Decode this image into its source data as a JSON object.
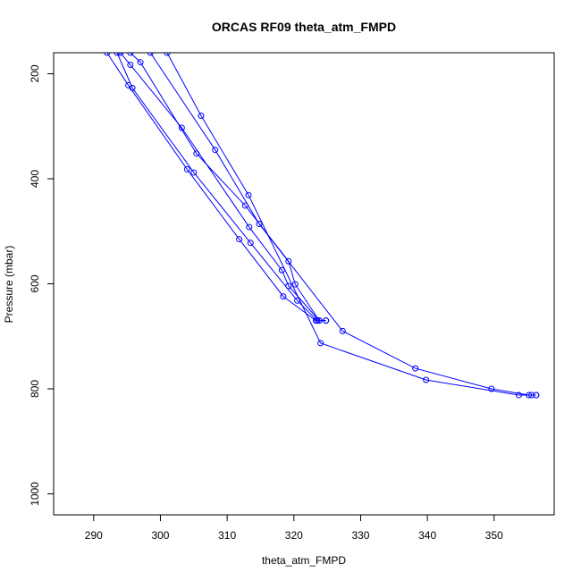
{
  "chart_data": {
    "type": "line",
    "title": "ORCAS RF09 theta_atm_FMPD",
    "xlabel": "theta_atm_FMPD",
    "ylabel": "Pressure (mbar)",
    "xlim": [
      284,
      359
    ],
    "ylim": [
      1040,
      160
    ],
    "y_reversed": true,
    "x_ticks": [
      290,
      300,
      310,
      320,
      330,
      340,
      350
    ],
    "y_ticks": [
      200,
      400,
      600,
      800,
      1000
    ],
    "grid": false,
    "legend": "none",
    "series_color": "#0000ff",
    "marker": "open-circle",
    "series": [
      {
        "x": [
          292.0,
          295.2,
          304.0,
          311.8,
          318.4,
          323.3,
          324.8
        ],
        "y": [
          160,
          222,
          382,
          515,
          624,
          670,
          670
        ]
      },
      {
        "x": [
          293.5,
          295.8,
          305.0,
          313.5,
          320.5,
          323.5,
          324.8
        ],
        "y": [
          160,
          227,
          388,
          522,
          632,
          670,
          670
        ]
      },
      {
        "x": [
          294.0,
          295.5,
          303.2,
          313.3,
          318.2,
          319.2,
          323.8
        ],
        "y": [
          160,
          183,
          303,
          492,
          574,
          604,
          670
        ]
      },
      {
        "x": [
          295.5,
          297.0,
          305.4,
          312.7,
          319.2,
          320.2,
          323.8
        ],
        "y": [
          160,
          178,
          352,
          451,
          557,
          601,
          670
        ]
      },
      {
        "x": [
          298.5,
          308.2,
          314.8,
          327.3,
          338.2,
          349.6,
          355.2,
          356.3
        ],
        "y": [
          160,
          345,
          486,
          690,
          761,
          800,
          812,
          812
        ]
      },
      {
        "x": [
          301.0,
          306.1,
          313.2,
          324.0,
          339.8,
          353.7,
          355.6,
          356.3
        ],
        "y": [
          160,
          280,
          431,
          713,
          783,
          812,
          812,
          812
        ]
      }
    ]
  }
}
